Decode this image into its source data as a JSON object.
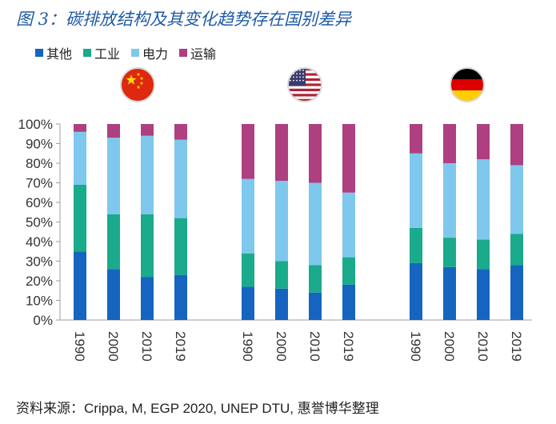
{
  "title": "图 3：碳排放结构及其变化趋势存在国别差异",
  "source": "资料来源：Crippa, M, EGP 2020, UNEP DTU, 惠誉博华整理",
  "chart_data": {
    "type": "bar",
    "stacked": true,
    "groups": [
      {
        "name": "china",
        "flag": "china-flag-icon",
        "categories": [
          "1990",
          "2000",
          "2010",
          "2019"
        ]
      },
      {
        "name": "usa",
        "flag": "usa-flag-icon",
        "categories": [
          "1990",
          "2000",
          "2010",
          "2019"
        ]
      },
      {
        "name": "germany",
        "flag": "germany-flag-icon",
        "categories": [
          "1990",
          "2000",
          "2010",
          "2019"
        ]
      }
    ],
    "series": [
      {
        "name": "其他",
        "color": "#1565c0",
        "values": [
          [
            35,
            26,
            22,
            23
          ],
          [
            17,
            16,
            14,
            18
          ],
          [
            29,
            27,
            26,
            28
          ]
        ]
      },
      {
        "name": "工业",
        "color": "#1aaa8c",
        "values": [
          [
            34,
            28,
            32,
            29
          ],
          [
            17,
            14,
            14,
            14
          ],
          [
            18,
            15,
            15,
            16
          ]
        ]
      },
      {
        "name": "电力",
        "color": "#7ec8ee",
        "values": [
          [
            27,
            39,
            40,
            40
          ],
          [
            38,
            41,
            42,
            33
          ],
          [
            38,
            38,
            41,
            35
          ]
        ]
      },
      {
        "name": "运输",
        "color": "#ae3f80",
        "values": [
          [
            4,
            7,
            6,
            8
          ],
          [
            28,
            29,
            30,
            35
          ],
          [
            15,
            20,
            18,
            21
          ]
        ]
      }
    ],
    "yticks": [
      "0%",
      "10%",
      "20%",
      "30%",
      "40%",
      "50%",
      "60%",
      "70%",
      "80%",
      "90%",
      "100%"
    ],
    "ylim": [
      0,
      100
    ],
    "legend_position": "top-left"
  }
}
